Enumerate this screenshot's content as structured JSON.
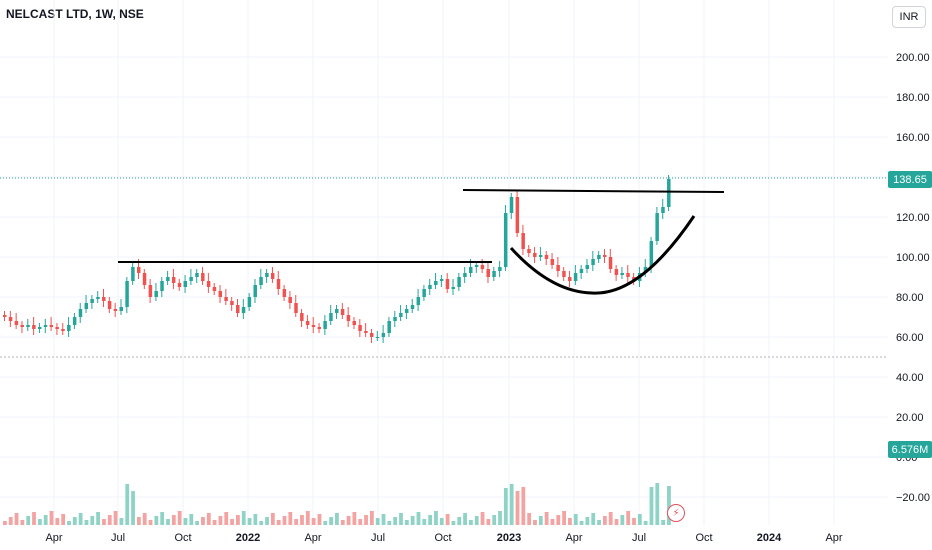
{
  "header": {
    "title": "NELCAST LTD, 1W, NSE",
    "currency": "INR"
  },
  "price_tag": "138.65",
  "volume_tag": "6.576M",
  "colors": {
    "up": "#26a69a",
    "down": "#ef5350",
    "up_vol": "#8fd3c7",
    "down_vol": "#f3a3a1",
    "grid": "#f0f3fa",
    "drawing": "#000000"
  },
  "icons": {
    "alert": "lightning-bolt-icon"
  },
  "chart_data": {
    "type": "candlestick",
    "title": "NELCAST LTD, 1W, NSE",
    "y_axis": {
      "ticks": [
        "200.00",
        "180.00",
        "160.00",
        "140.00",
        "120.00",
        "100.00",
        "80.00",
        "60.00",
        "40.00",
        "20.00",
        "0.00",
        "−20.00"
      ],
      "values": [
        200,
        180,
        160,
        140,
        120,
        100,
        80,
        60,
        40,
        20,
        0,
        -20
      ]
    },
    "x_axis": {
      "ticks": [
        "Apr",
        "Jul",
        "Oct",
        "2022",
        "Apr",
        "Jul",
        "Oct",
        "2023",
        "Apr",
        "Jul",
        "Oct",
        "2024",
        "Apr"
      ]
    },
    "last_price": 138.65,
    "last_volume": "6.576M",
    "closes": [
      70,
      68,
      66,
      65,
      66,
      64,
      65,
      66,
      65,
      64,
      63,
      66,
      70,
      74,
      77,
      79,
      80,
      78,
      74,
      73,
      75,
      88,
      95,
      92,
      86,
      80,
      83,
      88,
      90,
      87,
      85,
      88,
      90,
      92,
      88,
      85,
      83,
      80,
      78,
      76,
      72,
      75,
      80,
      86,
      90,
      92,
      89,
      84,
      80,
      77,
      72,
      68,
      66,
      65,
      64,
      68,
      72,
      74,
      71,
      68,
      66,
      63,
      62,
      60,
      60,
      62,
      68,
      70,
      72,
      74,
      76,
      80,
      84,
      86,
      88,
      89,
      84,
      85,
      90,
      92,
      95,
      96,
      94,
      90,
      93,
      95,
      122,
      130,
      112,
      104,
      102,
      100,
      101,
      99,
      96,
      93,
      90,
      88,
      92,
      94,
      96,
      99,
      101,
      100,
      94,
      91,
      92,
      90,
      88,
      92,
      95,
      108,
      122,
      125,
      139
    ],
    "volume_axis_note": "volume histogram shown below price"
  },
  "annotations": {
    "resistance_line_1": "horizontal trendline ~98",
    "resistance_line_2": "horizontal trendline ~131",
    "cup_curve": "cup-shaped curve"
  }
}
